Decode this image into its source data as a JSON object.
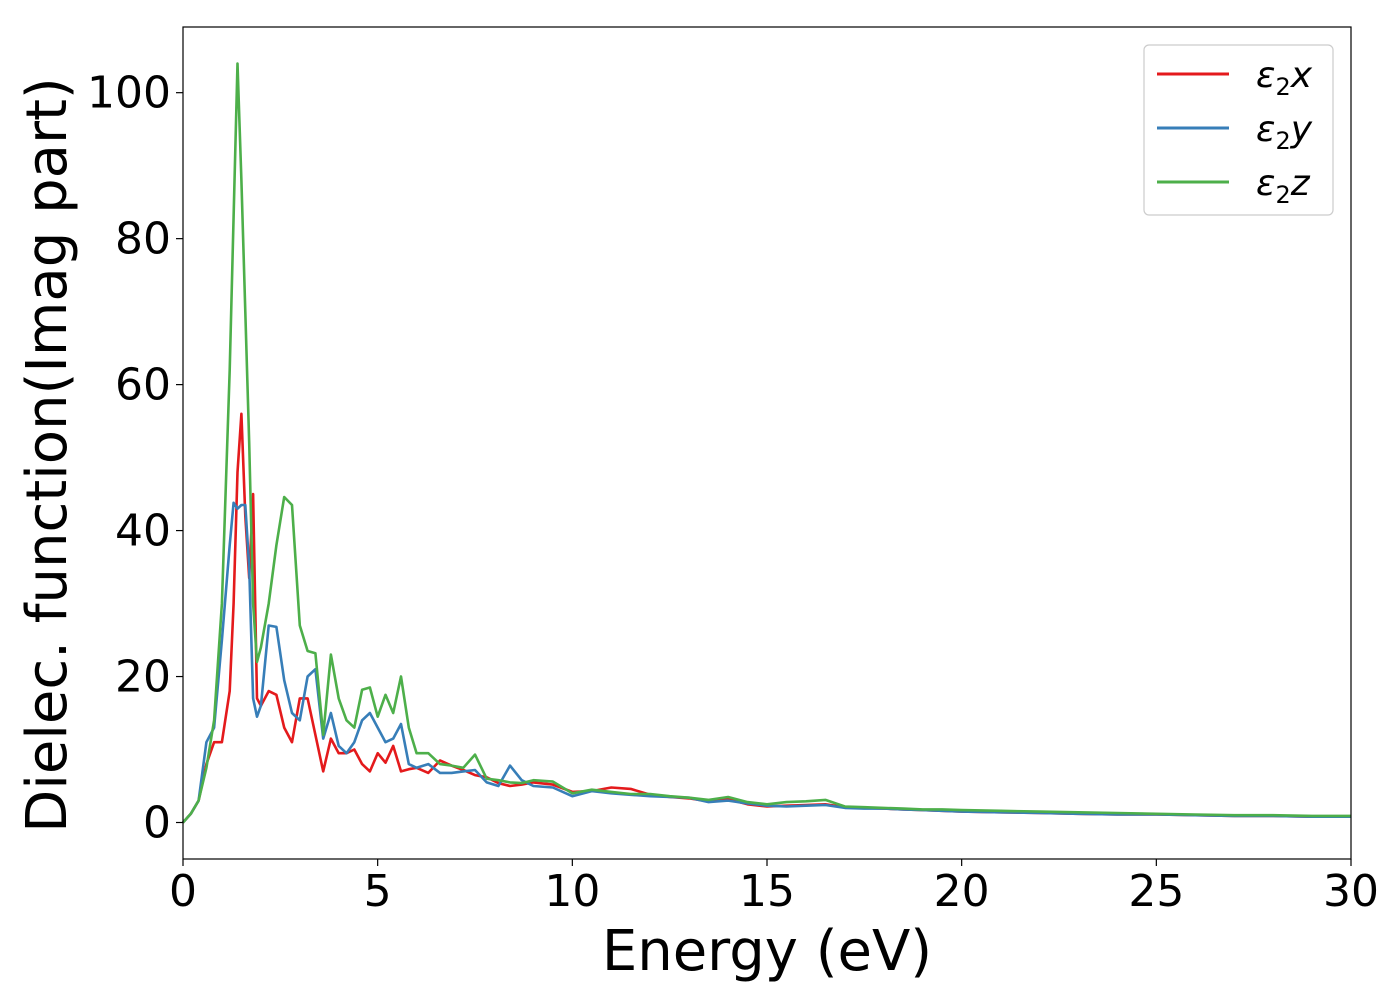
{
  "chart_data": {
    "type": "line",
    "xlabel": "Energy (eV)",
    "ylabel": "Dielec. function(Imag part)",
    "xlim": [
      0,
      30
    ],
    "ylim": [
      -5,
      109
    ],
    "xticks": [
      0,
      5,
      10,
      15,
      20,
      25,
      30
    ],
    "yticks": [
      0,
      20,
      40,
      60,
      80,
      100
    ],
    "grid": false,
    "legend_position": "top-right",
    "legend": {
      "entries": [
        {
          "prefix": "ε",
          "sub": "2",
          "suffix": "x"
        },
        {
          "prefix": "ε",
          "sub": "2",
          "suffix": "y"
        },
        {
          "prefix": "ε",
          "sub": "2",
          "suffix": "z"
        }
      ]
    },
    "series": [
      {
        "color": "#e41a1c",
        "x": [
          0,
          0.2,
          0.4,
          0.6,
          0.8,
          1.0,
          1.2,
          1.3,
          1.4,
          1.5,
          1.6,
          1.7,
          1.8,
          1.9,
          2.0,
          2.2,
          2.4,
          2.6,
          2.8,
          3.0,
          3.2,
          3.4,
          3.6,
          3.8,
          4.0,
          4.2,
          4.4,
          4.6,
          4.8,
          5.0,
          5.2,
          5.4,
          5.6,
          5.8,
          6.0,
          6.3,
          6.6,
          6.9,
          7.2,
          7.5,
          7.8,
          8.1,
          8.4,
          8.7,
          9.0,
          9.5,
          10,
          10.5,
          11,
          11.5,
          12,
          12.5,
          13,
          13.5,
          14,
          14.5,
          15,
          15.5,
          16,
          16.5,
          17,
          17.5,
          18,
          18.5,
          19,
          19.5,
          20,
          21,
          22,
          23,
          24,
          25,
          26,
          27,
          28,
          29,
          30
        ],
        "values": [
          0,
          1.2,
          3,
          8,
          11,
          11,
          18,
          30,
          48,
          56,
          42,
          33.5,
          45,
          17,
          16,
          18,
          17.5,
          13,
          11,
          17,
          17,
          12,
          7,
          11.5,
          9.5,
          9.5,
          10,
          8,
          7,
          9.5,
          8.2,
          10.5,
          7,
          7.3,
          7.5,
          6.8,
          8.5,
          7.8,
          7.2,
          6.5,
          6.2,
          5.4,
          5,
          5.2,
          5.5,
          5.2,
          4.2,
          4.3,
          4.8,
          4.6,
          3.8,
          3.5,
          3.3,
          2.9,
          3.2,
          2.5,
          2.2,
          2.3,
          2.4,
          2.5,
          2.1,
          2,
          1.9,
          1.8,
          1.7,
          1.6,
          1.5,
          1.4,
          1.3,
          1.2,
          1.1,
          1.1,
          1,
          0.9,
          0.9,
          0.8,
          0.8
        ]
      },
      {
        "color": "#377eb8",
        "x": [
          0,
          0.2,
          0.4,
          0.6,
          0.8,
          1.0,
          1.2,
          1.3,
          1.4,
          1.5,
          1.6,
          1.7,
          1.8,
          1.9,
          2.0,
          2.2,
          2.4,
          2.6,
          2.8,
          3.0,
          3.2,
          3.4,
          3.6,
          3.8,
          4.0,
          4.2,
          4.4,
          4.6,
          4.8,
          5.0,
          5.2,
          5.4,
          5.6,
          5.8,
          6.0,
          6.3,
          6.6,
          6.9,
          7.2,
          7.5,
          7.8,
          8.1,
          8.4,
          8.7,
          9.0,
          9.5,
          10,
          10.5,
          11,
          11.5,
          12,
          12.5,
          13,
          13.5,
          14,
          14.5,
          15,
          15.5,
          16,
          16.5,
          17,
          17.5,
          18,
          18.5,
          19,
          19.5,
          20,
          21,
          22,
          23,
          24,
          25,
          26,
          27,
          28,
          29,
          30
        ],
        "values": [
          0,
          1.2,
          3,
          11,
          13,
          25,
          38,
          43.8,
          43,
          43.5,
          43.5,
          35,
          17,
          14.5,
          16,
          27,
          26.8,
          19.5,
          15,
          14,
          20,
          21,
          11.5,
          15,
          10.5,
          9.5,
          11,
          14,
          15,
          13,
          11,
          11.5,
          13.5,
          8,
          7.5,
          8,
          6.8,
          6.8,
          7,
          7.2,
          5.5,
          5,
          7.8,
          5.8,
          5,
          4.8,
          3.6,
          4.3,
          4,
          3.8,
          3.6,
          3.5,
          3.4,
          2.8,
          3,
          2.6,
          2.3,
          2.2,
          2.3,
          2.4,
          2,
          1.9,
          1.9,
          1.8,
          1.7,
          1.6,
          1.5,
          1.4,
          1.3,
          1.2,
          1.1,
          1.1,
          1,
          0.9,
          0.9,
          0.8,
          0.8
        ]
      },
      {
        "color": "#4daf4a",
        "x": [
          0,
          0.2,
          0.4,
          0.6,
          0.8,
          1.0,
          1.2,
          1.3,
          1.4,
          1.5,
          1.6,
          1.7,
          1.8,
          1.9,
          2.0,
          2.2,
          2.4,
          2.6,
          2.8,
          3.0,
          3.2,
          3.4,
          3.6,
          3.8,
          4.0,
          4.2,
          4.4,
          4.6,
          4.8,
          5.0,
          5.2,
          5.4,
          5.6,
          5.8,
          6.0,
          6.3,
          6.6,
          6.9,
          7.2,
          7.5,
          7.8,
          8.1,
          8.4,
          8.7,
          9.0,
          9.5,
          10,
          10.5,
          11,
          11.5,
          12,
          12.5,
          13,
          13.5,
          14,
          14.5,
          15,
          15.5,
          16,
          16.5,
          17,
          17.5,
          18,
          18.5,
          19,
          19.5,
          20,
          21,
          22,
          23,
          24,
          25,
          26,
          27,
          28,
          29,
          30
        ],
        "values": [
          0,
          1.2,
          3,
          7.5,
          14,
          30,
          62,
          83,
          104,
          88,
          70,
          52,
          30,
          22,
          24,
          30,
          38,
          44.6,
          43.5,
          27,
          23.5,
          23.2,
          12,
          23,
          17,
          14,
          13,
          18.2,
          18.5,
          14.5,
          17.5,
          15,
          20,
          13,
          9.5,
          9.5,
          8,
          7.8,
          7.5,
          9.3,
          6,
          5.8,
          5.5,
          5.4,
          5.8,
          5.6,
          4,
          4.5,
          4.2,
          3.9,
          3.9,
          3.6,
          3.4,
          3.1,
          3.5,
          2.8,
          2.5,
          2.8,
          2.9,
          3.1,
          2.2,
          2.1,
          2,
          1.9,
          1.8,
          1.8,
          1.7,
          1.6,
          1.5,
          1.4,
          1.3,
          1.2,
          1.1,
          1,
          1,
          0.9,
          0.9
        ]
      }
    ]
  }
}
